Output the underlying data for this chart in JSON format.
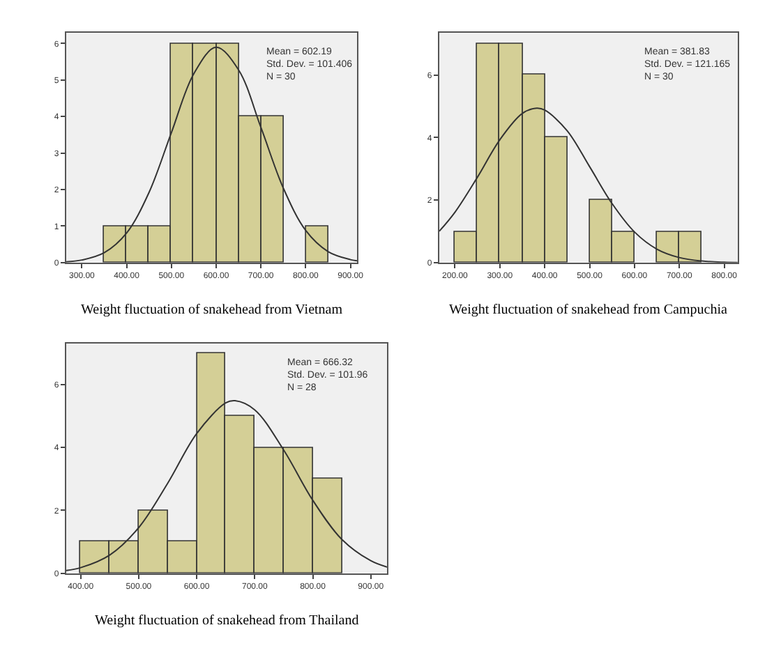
{
  "chart_data": [
    {
      "type": "histogram",
      "title": "Weight fluctuation of snakehead from Vietnam",
      "bins": [
        350,
        400,
        450,
        500,
        550,
        600,
        650,
        700,
        750,
        800,
        850
      ],
      "values": [
        1,
        1,
        1,
        6,
        6,
        6,
        4,
        4,
        0,
        1
      ],
      "color": "#d4cf96",
      "series": [
        {
          "type": "line",
          "color": "#333333",
          "x": [
            265,
            300,
            350,
            400,
            450,
            500,
            550,
            600,
            650,
            700,
            750,
            800,
            850,
            900,
            915
          ],
          "values": [
            0.02,
            0.07,
            0.27,
            0.81,
            1.92,
            3.56,
            5.17,
            5.9,
            5.28,
            3.7,
            2.04,
            0.88,
            0.3,
            0.08,
            0.05
          ]
        }
      ],
      "xlim": [
        265,
        915
      ],
      "xticks": [
        {
          "value": 300,
          "label": "300.00"
        },
        {
          "value": 400,
          "label": "400.00"
        },
        {
          "value": 500,
          "label": "500.00"
        },
        {
          "value": 600,
          "label": "600.00"
        },
        {
          "value": 700,
          "label": "700.00"
        },
        {
          "value": 800,
          "label": "800.00"
        },
        {
          "value": 900,
          "label": "900.00"
        }
      ],
      "ylim": [
        0,
        6.3
      ],
      "yticks": [
        0,
        1,
        2,
        3,
        4,
        5,
        6
      ],
      "grid": false,
      "annotations": [
        "Mean = 602.19\nStd. Dev. = 101.406\nN = 30"
      ]
    },
    {
      "type": "histogram",
      "title": "Weight fluctuation of snakehead from Campuchia",
      "bins": [
        200,
        250,
        300,
        350,
        400,
        450,
        500,
        550,
        600,
        650,
        700,
        750
      ],
      "values": [
        1,
        7,
        7,
        6,
        4,
        0,
        2,
        1,
        0,
        1,
        1
      ],
      "color": "#d4cf96",
      "series": [
        {
          "type": "line",
          "color": "#333333",
          "x": [
            165,
            200,
            250,
            300,
            350,
            382,
            400,
            450,
            500,
            550,
            600,
            650,
            700,
            750,
            800,
            830
          ],
          "values": [
            1.0,
            1.61,
            2.73,
            3.93,
            4.77,
            4.94,
            4.88,
            4.22,
            3.07,
            1.89,
            0.98,
            0.43,
            0.16,
            0.05,
            0.01,
            0.0
          ]
        }
      ],
      "xlim": [
        165,
        830
      ],
      "xticks": [
        {
          "value": 200,
          "label": "200.00"
        },
        {
          "value": 300,
          "label": "300.00"
        },
        {
          "value": 400,
          "label": "400.00"
        },
        {
          "value": 500,
          "label": "500.00"
        },
        {
          "value": 600,
          "label": "600.00"
        },
        {
          "value": 700,
          "label": "700.00"
        },
        {
          "value": 800,
          "label": "800.00"
        }
      ],
      "ylim": [
        0,
        7.36
      ],
      "yticks": [
        0,
        2,
        4,
        6
      ],
      "grid": false,
      "annotations": [
        "Mean = 381.83\nStd. Dev. = 121.165\nN = 30"
      ]
    },
    {
      "type": "histogram",
      "title": "Weight fluctuation of snakehead from Thailand",
      "bins": [
        400,
        450,
        500,
        550,
        600,
        650,
        700,
        750,
        800,
        850
      ],
      "values": [
        1,
        1,
        2,
        1,
        7,
        5,
        4,
        4,
        3
      ],
      "color": "#d4cf96",
      "series": [
        {
          "type": "line",
          "color": "#333333",
          "x": [
            375,
            400,
            450,
            500,
            550,
            600,
            650,
            666,
            700,
            750,
            800,
            850,
            900,
            928
          ],
          "values": [
            0.09,
            0.18,
            0.58,
            1.45,
            2.86,
            4.44,
            5.41,
            5.48,
            5.19,
            3.91,
            2.32,
            1.08,
            0.4,
            0.2
          ]
        }
      ],
      "xlim": [
        375,
        928
      ],
      "xticks": [
        {
          "value": 400,
          "label": "400.00"
        },
        {
          "value": 500,
          "label": "500.00"
        },
        {
          "value": 600,
          "label": "600.00"
        },
        {
          "value": 700,
          "label": "700.00"
        },
        {
          "value": 800,
          "label": "800.00"
        },
        {
          "value": 900,
          "label": "900.00"
        }
      ],
      "ylim": [
        0,
        7.3
      ],
      "yticks": [
        0,
        2,
        4,
        6
      ],
      "grid": false,
      "annotations": [
        "Mean = 666.32\nStd. Dev. = 101.96\nN = 28"
      ]
    }
  ]
}
